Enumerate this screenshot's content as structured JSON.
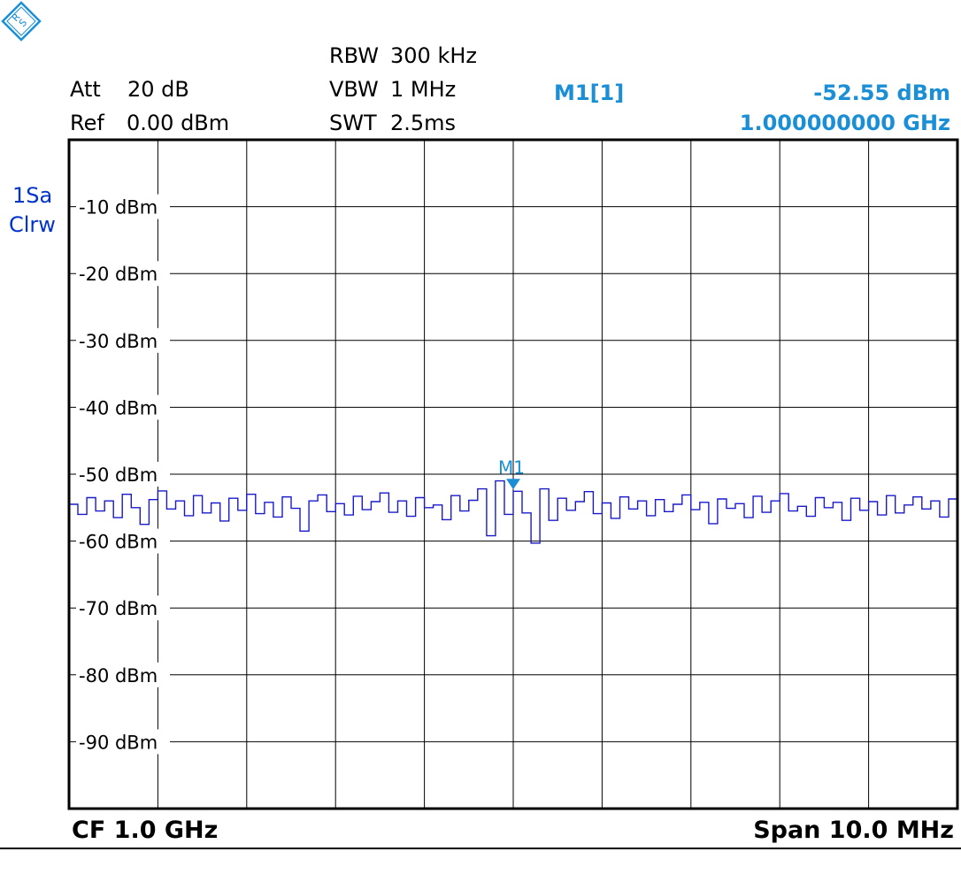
{
  "header": {
    "att_label": "Att",
    "att_value": "20 dB",
    "ref_label": "Ref",
    "ref_value": "0.00 dBm",
    "rbw_label": "RBW",
    "rbw_value": "300 kHz",
    "vbw_label": "VBW",
    "vbw_value": "1 MHz",
    "swt_label": "SWT",
    "swt_value": "2.5ms",
    "marker_name": "M1[1]",
    "marker_level": "-52.55 dBm",
    "marker_freq": "1.000000000 GHz"
  },
  "trace_info": {
    "line1": "1Sa",
    "line2": "Clrw"
  },
  "footer": {
    "cf": "CF 1.0 GHz",
    "span": "Span 10.0 MHz"
  },
  "colors": {
    "trace": "#1a1acc",
    "marker": "#1b8fd6",
    "grid": "#000000",
    "label_blue": "#0033cc"
  },
  "logo_icon": "rohde-schwarz-logo-icon",
  "chart_data": {
    "type": "line",
    "title": "",
    "xlabel": "",
    "ylabel": "",
    "x_unit": "MHz",
    "xlim": [
      995,
      1005
    ],
    "ylim": [
      -100,
      0
    ],
    "yticks": [
      -10,
      -20,
      -30,
      -40,
      -50,
      -60,
      -70,
      -80,
      -90
    ],
    "ytick_labels": [
      "-10 dBm",
      "-20 dBm",
      "-30 dBm",
      "-40 dBm",
      "-50 dBm",
      "-60 dBm",
      "-70 dBm",
      "-80 dBm",
      "-90 dBm"
    ],
    "grid": true,
    "noise_floor_dbm": -55,
    "series": [
      {
        "values": [
          {
            "x": 995.0,
            "y": -54.5
          },
          {
            "x": 995.1,
            "y": -56.0
          },
          {
            "x": 995.2,
            "y": -53.5
          },
          {
            "x": 995.3,
            "y": -55.5
          },
          {
            "x": 995.4,
            "y": -54.0
          },
          {
            "x": 995.5,
            "y": -56.5
          },
          {
            "x": 995.6,
            "y": -53.0
          },
          {
            "x": 995.7,
            "y": -55.0
          },
          {
            "x": 995.8,
            "y": -57.5
          },
          {
            "x": 995.9,
            "y": -53.8
          },
          {
            "x": 996.0,
            "y": -52.5
          },
          {
            "x": 996.1,
            "y": -55.2
          },
          {
            "x": 996.2,
            "y": -54.0
          },
          {
            "x": 996.3,
            "y": -56.2
          },
          {
            "x": 996.4,
            "y": -53.2
          },
          {
            "x": 996.5,
            "y": -55.8
          },
          {
            "x": 996.6,
            "y": -54.3
          },
          {
            "x": 996.7,
            "y": -57.0
          },
          {
            "x": 996.8,
            "y": -53.6
          },
          {
            "x": 996.9,
            "y": -55.4
          },
          {
            "x": 997.0,
            "y": -53.0
          },
          {
            "x": 997.1,
            "y": -55.9
          },
          {
            "x": 997.2,
            "y": -54.2
          },
          {
            "x": 997.3,
            "y": -56.4
          },
          {
            "x": 997.4,
            "y": -53.4
          },
          {
            "x": 997.5,
            "y": -55.1
          },
          {
            "x": 997.6,
            "y": -58.5
          },
          {
            "x": 997.7,
            "y": -54.0
          },
          {
            "x": 997.8,
            "y": -53.1
          },
          {
            "x": 997.9,
            "y": -55.6
          },
          {
            "x": 998.0,
            "y": -54.4
          },
          {
            "x": 998.1,
            "y": -56.1
          },
          {
            "x": 998.2,
            "y": -53.3
          },
          {
            "x": 998.3,
            "y": -55.3
          },
          {
            "x": 998.4,
            "y": -54.1
          },
          {
            "x": 998.5,
            "y": -52.8
          },
          {
            "x": 998.6,
            "y": -55.7
          },
          {
            "x": 998.7,
            "y": -54.0
          },
          {
            "x": 998.8,
            "y": -56.3
          },
          {
            "x": 998.9,
            "y": -53.5
          },
          {
            "x": 999.0,
            "y": -55.0
          },
          {
            "x": 999.1,
            "y": -54.6
          },
          {
            "x": 999.2,
            "y": -56.8
          },
          {
            "x": 999.3,
            "y": -53.2
          },
          {
            "x": 999.4,
            "y": -55.5
          },
          {
            "x": 999.5,
            "y": -53.9
          },
          {
            "x": 999.6,
            "y": -52.2
          },
          {
            "x": 999.7,
            "y": -59.2
          },
          {
            "x": 999.8,
            "y": -51.0
          },
          {
            "x": 999.9,
            "y": -56.0
          },
          {
            "x": 1000.0,
            "y": -52.55
          },
          {
            "x": 1000.1,
            "y": -55.8
          },
          {
            "x": 1000.2,
            "y": -60.3
          },
          {
            "x": 1000.3,
            "y": -52.2
          },
          {
            "x": 1000.4,
            "y": -56.9
          },
          {
            "x": 1000.5,
            "y": -53.6
          },
          {
            "x": 1000.6,
            "y": -55.4
          },
          {
            "x": 1000.7,
            "y": -54.1
          },
          {
            "x": 1000.8,
            "y": -52.6
          },
          {
            "x": 1000.9,
            "y": -55.9
          },
          {
            "x": 1001.0,
            "y": -54.3
          },
          {
            "x": 1001.1,
            "y": -56.6
          },
          {
            "x": 1001.2,
            "y": -53.4
          },
          {
            "x": 1001.3,
            "y": -55.2
          },
          {
            "x": 1001.4,
            "y": -54.0
          },
          {
            "x": 1001.5,
            "y": -56.2
          },
          {
            "x": 1001.6,
            "y": -53.8
          },
          {
            "x": 1001.7,
            "y": -55.6
          },
          {
            "x": 1001.8,
            "y": -54.5
          },
          {
            "x": 1001.9,
            "y": -53.1
          },
          {
            "x": 1002.0,
            "y": -55.3
          },
          {
            "x": 1002.1,
            "y": -54.2
          },
          {
            "x": 1002.2,
            "y": -57.4
          },
          {
            "x": 1002.3,
            "y": -53.7
          },
          {
            "x": 1002.4,
            "y": -55.1
          },
          {
            "x": 1002.5,
            "y": -54.4
          },
          {
            "x": 1002.6,
            "y": -56.5
          },
          {
            "x": 1002.7,
            "y": -53.3
          },
          {
            "x": 1002.8,
            "y": -55.7
          },
          {
            "x": 1002.9,
            "y": -54.0
          },
          {
            "x": 1003.0,
            "y": -52.9
          },
          {
            "x": 1003.1,
            "y": -55.5
          },
          {
            "x": 1003.2,
            "y": -54.8
          },
          {
            "x": 1003.3,
            "y": -56.3
          },
          {
            "x": 1003.4,
            "y": -53.5
          },
          {
            "x": 1003.5,
            "y": -55.0
          },
          {
            "x": 1003.6,
            "y": -54.2
          },
          {
            "x": 1003.7,
            "y": -56.9
          },
          {
            "x": 1003.8,
            "y": -53.6
          },
          {
            "x": 1003.9,
            "y": -55.4
          },
          {
            "x": 1004.0,
            "y": -54.1
          },
          {
            "x": 1004.1,
            "y": -56.1
          },
          {
            "x": 1004.2,
            "y": -53.2
          },
          {
            "x": 1004.3,
            "y": -55.8
          },
          {
            "x": 1004.4,
            "y": -54.6
          },
          {
            "x": 1004.5,
            "y": -53.4
          },
          {
            "x": 1004.6,
            "y": -55.2
          },
          {
            "x": 1004.7,
            "y": -54.0
          },
          {
            "x": 1004.8,
            "y": -56.4
          },
          {
            "x": 1004.9,
            "y": -53.7
          },
          {
            "x": 1005.0,
            "y": -57.0
          }
        ]
      }
    ],
    "markers": [
      {
        "label": "M1",
        "x": 1000.0,
        "y": -52.55
      }
    ]
  }
}
